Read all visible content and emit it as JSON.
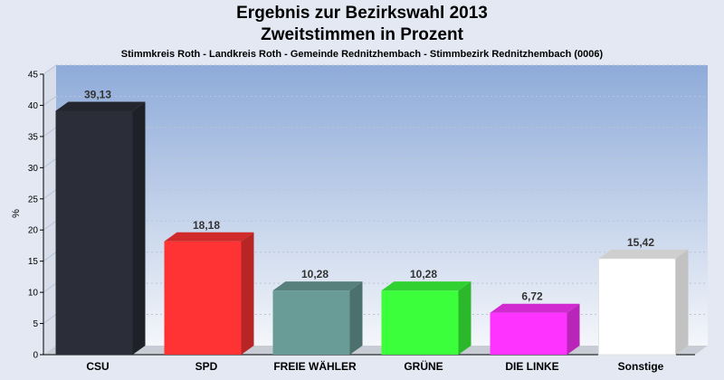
{
  "chart_data": {
    "type": "bar",
    "title": "Ergebnis zur Bezirkswahl 2013",
    "subtitle": "Zweitstimmen in Prozent",
    "caption": "Stimmkreis Roth - Landkreis Roth - Gemeinde Rednitzhembach - Stimmbezirk Rednitzhembach (0006)",
    "ylabel": "%",
    "xlabel": "",
    "ylim": [
      0,
      45
    ],
    "yticks": [
      0,
      5,
      10,
      15,
      20,
      25,
      30,
      35,
      40,
      45
    ],
    "categories": [
      "CSU",
      "SPD",
      "FREIE WÄHLER",
      "GRÜNE",
      "DIE LINKE",
      "Sonstige"
    ],
    "values": [
      39.13,
      18.18,
      10.28,
      10.28,
      6.72,
      15.42
    ],
    "value_labels": [
      "39,13",
      "18,18",
      "10,28",
      "10,28",
      "6,72",
      "15,42"
    ],
    "colors": [
      "#2b2e38",
      "#ff3333",
      "#6a9c97",
      "#3cff3c",
      "#ff33ff",
      "#ffffff"
    ],
    "grid": true,
    "legend": "none"
  }
}
